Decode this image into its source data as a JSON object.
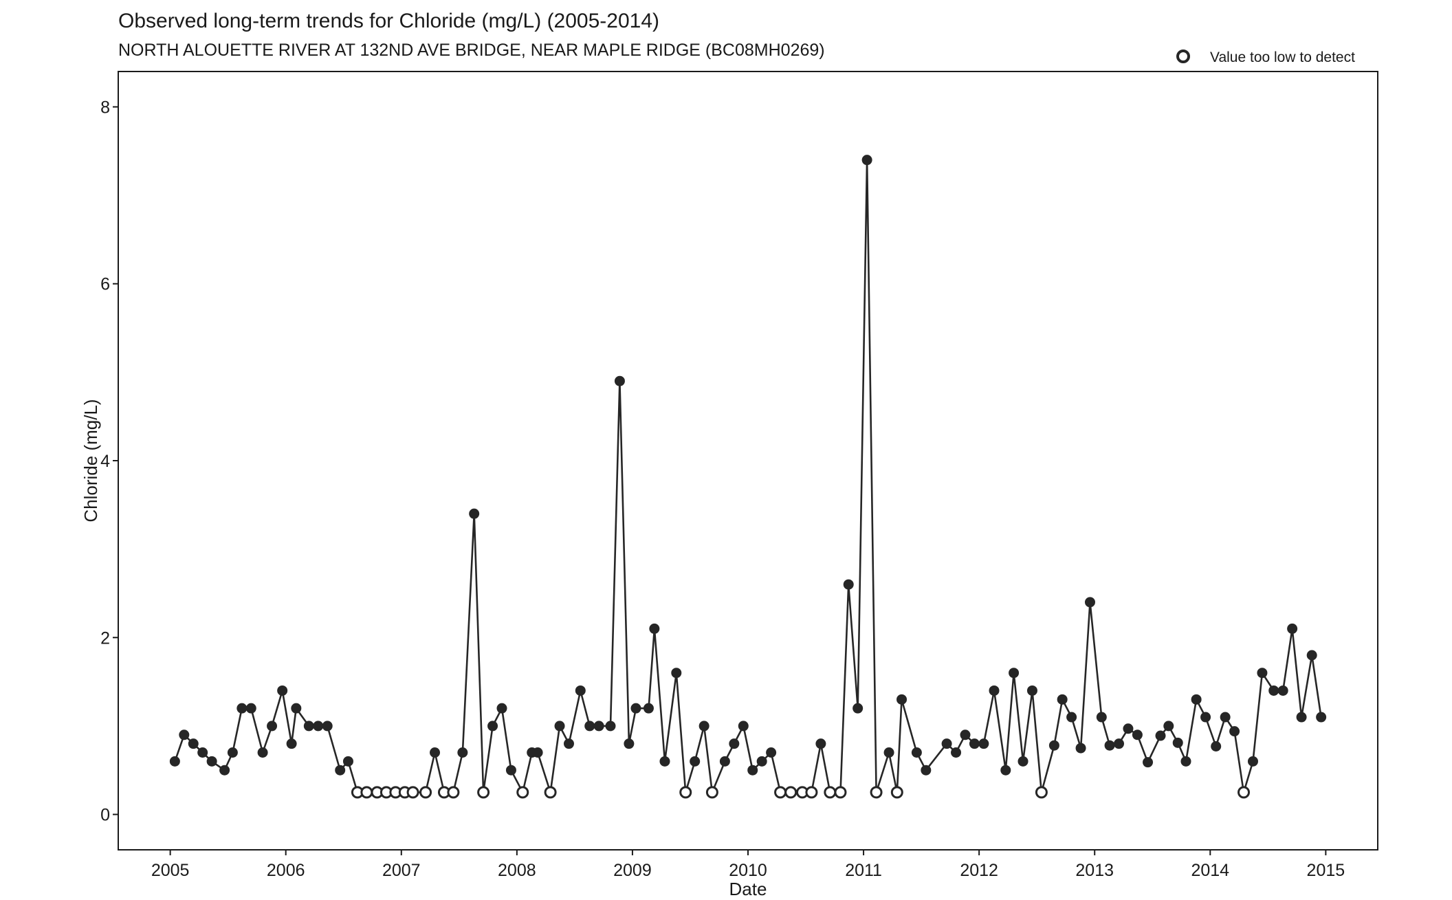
{
  "chart_data": {
    "type": "line",
    "title": "Observed long-term trends for Chloride (mg/L) (2005-2014)",
    "subtitle": "NORTH ALOUETTE RIVER AT 132ND AVE BRIDGE, NEAR MAPLE RIDGE (BC08MH0269)",
    "xlabel": "Date",
    "ylabel": "Chloride (mg/L)",
    "xlim": [
      2004.55,
      2015.45
    ],
    "ylim": [
      -0.4,
      8.4
    ],
    "x_ticks": [
      2005,
      2006,
      2007,
      2008,
      2009,
      2010,
      2011,
      2012,
      2013,
      2014,
      2015
    ],
    "x_tick_labels": [
      "2005",
      "2006",
      "2007",
      "2008",
      "2009",
      "2010",
      "2011",
      "2012",
      "2013",
      "2014",
      "2015"
    ],
    "y_ticks": [
      0,
      2,
      4,
      6,
      8
    ],
    "y_tick_labels": [
      "0",
      "2",
      "4",
      "6",
      "8"
    ],
    "grid": false,
    "legend": {
      "position": "top-right",
      "entries": [
        {
          "label": "Value too low to detect",
          "marker": "open-circle"
        }
      ]
    },
    "colors": {
      "series": "#262626",
      "frame": "#1a1a1a"
    },
    "series": [
      {
        "points": [
          {
            "x": 2005.04,
            "y": 0.6,
            "detected": true
          },
          {
            "x": 2005.12,
            "y": 0.9,
            "detected": true
          },
          {
            "x": 2005.2,
            "y": 0.8,
            "detected": true
          },
          {
            "x": 2005.28,
            "y": 0.7,
            "detected": true
          },
          {
            "x": 2005.36,
            "y": 0.6,
            "detected": true
          },
          {
            "x": 2005.47,
            "y": 0.5,
            "detected": true
          },
          {
            "x": 2005.54,
            "y": 0.7,
            "detected": true
          },
          {
            "x": 2005.62,
            "y": 1.2,
            "detected": true
          },
          {
            "x": 2005.7,
            "y": 1.2,
            "detected": true
          },
          {
            "x": 2005.8,
            "y": 0.7,
            "detected": true
          },
          {
            "x": 2005.88,
            "y": 1.0,
            "detected": true
          },
          {
            "x": 2005.97,
            "y": 1.4,
            "detected": true
          },
          {
            "x": 2006.05,
            "y": 0.8,
            "detected": true
          },
          {
            "x": 2006.09,
            "y": 1.2,
            "detected": true
          },
          {
            "x": 2006.2,
            "y": 1.0,
            "detected": true
          },
          {
            "x": 2006.28,
            "y": 1.0,
            "detected": true
          },
          {
            "x": 2006.36,
            "y": 1.0,
            "detected": true
          },
          {
            "x": 2006.47,
            "y": 0.5,
            "detected": true
          },
          {
            "x": 2006.54,
            "y": 0.6,
            "detected": true
          },
          {
            "x": 2006.62,
            "y": 0.25,
            "detected": false
          },
          {
            "x": 2006.7,
            "y": 0.25,
            "detected": false
          },
          {
            "x": 2006.79,
            "y": 0.25,
            "detected": false
          },
          {
            "x": 2006.87,
            "y": 0.25,
            "detected": false
          },
          {
            "x": 2006.95,
            "y": 0.25,
            "detected": false
          },
          {
            "x": 2007.03,
            "y": 0.25,
            "detected": false
          },
          {
            "x": 2007.1,
            "y": 0.25,
            "detected": false
          },
          {
            "x": 2007.21,
            "y": 0.25,
            "detected": false
          },
          {
            "x": 2007.29,
            "y": 0.7,
            "detected": true
          },
          {
            "x": 2007.37,
            "y": 0.25,
            "detected": false
          },
          {
            "x": 2007.45,
            "y": 0.25,
            "detected": false
          },
          {
            "x": 2007.53,
            "y": 0.7,
            "detected": true
          },
          {
            "x": 2007.63,
            "y": 3.4,
            "detected": true
          },
          {
            "x": 2007.71,
            "y": 0.25,
            "detected": false
          },
          {
            "x": 2007.79,
            "y": 1.0,
            "detected": true
          },
          {
            "x": 2007.87,
            "y": 1.2,
            "detected": true
          },
          {
            "x": 2007.95,
            "y": 0.5,
            "detected": true
          },
          {
            "x": 2008.05,
            "y": 0.25,
            "detected": false
          },
          {
            "x": 2008.13,
            "y": 0.7,
            "detected": true
          },
          {
            "x": 2008.18,
            "y": 0.7,
            "detected": true
          },
          {
            "x": 2008.29,
            "y": 0.25,
            "detected": false
          },
          {
            "x": 2008.37,
            "y": 1.0,
            "detected": true
          },
          {
            "x": 2008.45,
            "y": 0.8,
            "detected": true
          },
          {
            "x": 2008.55,
            "y": 1.4,
            "detected": true
          },
          {
            "x": 2008.63,
            "y": 1.0,
            "detected": true
          },
          {
            "x": 2008.71,
            "y": 1.0,
            "detected": true
          },
          {
            "x": 2008.81,
            "y": 1.0,
            "detected": true
          },
          {
            "x": 2008.89,
            "y": 4.9,
            "detected": true
          },
          {
            "x": 2008.97,
            "y": 0.8,
            "detected": true
          },
          {
            "x": 2009.03,
            "y": 1.2,
            "detected": true
          },
          {
            "x": 2009.14,
            "y": 1.2,
            "detected": true
          },
          {
            "x": 2009.19,
            "y": 2.1,
            "detected": true
          },
          {
            "x": 2009.28,
            "y": 0.6,
            "detected": true
          },
          {
            "x": 2009.38,
            "y": 1.6,
            "detected": true
          },
          {
            "x": 2009.46,
            "y": 0.25,
            "detected": false
          },
          {
            "x": 2009.54,
            "y": 0.6,
            "detected": true
          },
          {
            "x": 2009.62,
            "y": 1.0,
            "detected": true
          },
          {
            "x": 2009.69,
            "y": 0.25,
            "detected": false
          },
          {
            "x": 2009.8,
            "y": 0.6,
            "detected": true
          },
          {
            "x": 2009.88,
            "y": 0.8,
            "detected": true
          },
          {
            "x": 2009.96,
            "y": 1.0,
            "detected": true
          },
          {
            "x": 2010.04,
            "y": 0.5,
            "detected": true
          },
          {
            "x": 2010.12,
            "y": 0.6,
            "detected": true
          },
          {
            "x": 2010.2,
            "y": 0.7,
            "detected": true
          },
          {
            "x": 2010.28,
            "y": 0.25,
            "detected": false
          },
          {
            "x": 2010.37,
            "y": 0.25,
            "detected": false
          },
          {
            "x": 2010.47,
            "y": 0.25,
            "detected": false
          },
          {
            "x": 2010.55,
            "y": 0.25,
            "detected": false
          },
          {
            "x": 2010.63,
            "y": 0.8,
            "detected": true
          },
          {
            "x": 2010.71,
            "y": 0.25,
            "detected": false
          },
          {
            "x": 2010.8,
            "y": 0.25,
            "detected": false
          },
          {
            "x": 2010.87,
            "y": 2.6,
            "detected": true
          },
          {
            "x": 2010.95,
            "y": 1.2,
            "detected": true
          },
          {
            "x": 2011.03,
            "y": 7.4,
            "detected": true
          },
          {
            "x": 2011.11,
            "y": 0.25,
            "detected": false
          },
          {
            "x": 2011.22,
            "y": 0.7,
            "detected": true
          },
          {
            "x": 2011.29,
            "y": 0.25,
            "detected": false
          },
          {
            "x": 2011.33,
            "y": 1.3,
            "detected": true
          },
          {
            "x": 2011.46,
            "y": 0.7,
            "detected": true
          },
          {
            "x": 2011.54,
            "y": 0.5,
            "detected": true
          },
          {
            "x": 2011.72,
            "y": 0.8,
            "detected": true
          },
          {
            "x": 2011.8,
            "y": 0.7,
            "detected": true
          },
          {
            "x": 2011.88,
            "y": 0.9,
            "detected": true
          },
          {
            "x": 2011.96,
            "y": 0.8,
            "detected": true
          },
          {
            "x": 2012.04,
            "y": 0.8,
            "detected": true
          },
          {
            "x": 2012.13,
            "y": 1.4,
            "detected": true
          },
          {
            "x": 2012.23,
            "y": 0.5,
            "detected": true
          },
          {
            "x": 2012.3,
            "y": 1.6,
            "detected": true
          },
          {
            "x": 2012.38,
            "y": 0.6,
            "detected": true
          },
          {
            "x": 2012.46,
            "y": 1.4,
            "detected": true
          },
          {
            "x": 2012.54,
            "y": 0.25,
            "detected": false
          },
          {
            "x": 2012.65,
            "y": 0.78,
            "detected": true
          },
          {
            "x": 2012.72,
            "y": 1.3,
            "detected": true
          },
          {
            "x": 2012.8,
            "y": 1.1,
            "detected": true
          },
          {
            "x": 2012.88,
            "y": 0.75,
            "detected": true
          },
          {
            "x": 2012.96,
            "y": 2.4,
            "detected": true
          },
          {
            "x": 2013.06,
            "y": 1.1,
            "detected": true
          },
          {
            "x": 2013.13,
            "y": 0.78,
            "detected": true
          },
          {
            "x": 2013.21,
            "y": 0.8,
            "detected": true
          },
          {
            "x": 2013.29,
            "y": 0.97,
            "detected": true
          },
          {
            "x": 2013.37,
            "y": 0.9,
            "detected": true
          },
          {
            "x": 2013.46,
            "y": 0.59,
            "detected": true
          },
          {
            "x": 2013.57,
            "y": 0.89,
            "detected": true
          },
          {
            "x": 2013.64,
            "y": 1.0,
            "detected": true
          },
          {
            "x": 2013.72,
            "y": 0.81,
            "detected": true
          },
          {
            "x": 2013.79,
            "y": 0.6,
            "detected": true
          },
          {
            "x": 2013.88,
            "y": 1.3,
            "detected": true
          },
          {
            "x": 2013.96,
            "y": 1.1,
            "detected": true
          },
          {
            "x": 2014.05,
            "y": 0.77,
            "detected": true
          },
          {
            "x": 2014.13,
            "y": 1.1,
            "detected": true
          },
          {
            "x": 2014.21,
            "y": 0.94,
            "detected": true
          },
          {
            "x": 2014.29,
            "y": 0.25,
            "detected": false
          },
          {
            "x": 2014.37,
            "y": 0.6,
            "detected": true
          },
          {
            "x": 2014.45,
            "y": 1.6,
            "detected": true
          },
          {
            "x": 2014.55,
            "y": 1.4,
            "detected": true
          },
          {
            "x": 2014.63,
            "y": 1.4,
            "detected": true
          },
          {
            "x": 2014.71,
            "y": 2.1,
            "detected": true
          },
          {
            "x": 2014.79,
            "y": 1.1,
            "detected": true
          },
          {
            "x": 2014.88,
            "y": 1.8,
            "detected": true
          },
          {
            "x": 2014.96,
            "y": 1.1,
            "detected": true
          }
        ]
      }
    ]
  }
}
